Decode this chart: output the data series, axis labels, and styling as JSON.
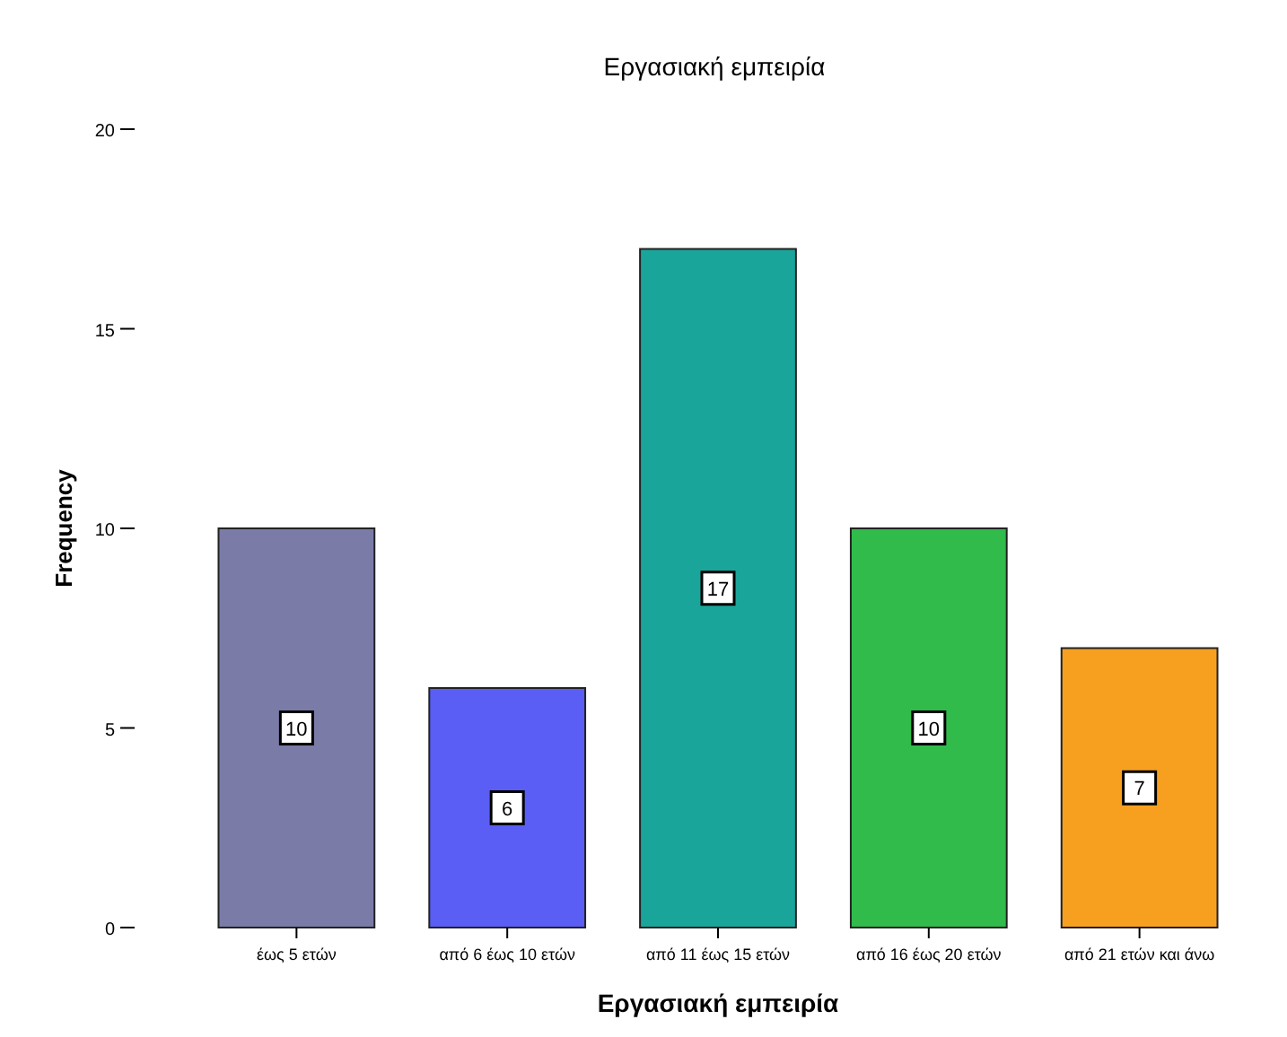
{
  "chart_data": {
    "type": "bar",
    "title": "Εργασιακή εμπειρία",
    "xlabel": "Εργασιακή εμπειρία",
    "ylabel": "Frequency",
    "categories": [
      "έως 5 ετών",
      "από 6 έως 10 ετών",
      "από 11 έως 15 ετών",
      "από 16 έως 20 ετών",
      "από 21 ετών και άνω"
    ],
    "values": [
      10,
      6,
      17,
      10,
      7
    ],
    "colors": [
      "#7b7ba8",
      "#5a5ef5",
      "#1aa59a",
      "#30bb4a",
      "#f7a020"
    ],
    "ylim": [
      0,
      20
    ],
    "yticks": [
      0,
      5,
      10,
      15,
      20
    ],
    "data_labels": true,
    "grid": false
  }
}
